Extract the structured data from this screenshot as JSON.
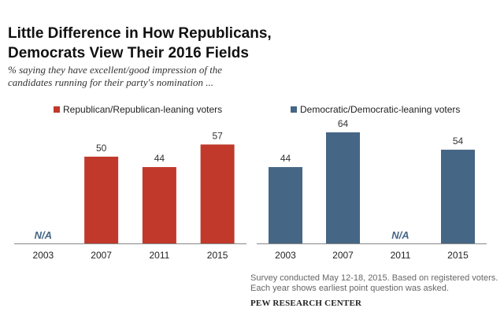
{
  "title_line1": "Little Difference in How Republicans,",
  "title_line2": "Democrats View Their 2016 Fields",
  "subtitle_line1": "% saying they have excellent/good impression of the",
  "subtitle_line2": "candidates running for their party's nomination ...",
  "note_line1": "Survey conducted May 12-18, 2015. Based on registered voters.",
  "note_line2": "Each year shows earliest point question was asked.",
  "source": "PEW RESEARCH CENTER",
  "colors": {
    "republican": "#c0392b",
    "democratic": "#466685",
    "na_text": "#466685"
  },
  "chart_data": [
    {
      "type": "bar",
      "categories": [
        "2003",
        "2007",
        "2011",
        "2015"
      ],
      "series": [
        {
          "name": "Republican/Republican-leaning voters",
          "values": [
            null,
            50,
            44,
            57
          ]
        }
      ],
      "value_labels": [
        "N/A",
        "50",
        "44",
        "57"
      ],
      "ylim": [
        0,
        64
      ]
    },
    {
      "type": "bar",
      "categories": [
        "2003",
        "2007",
        "2011",
        "2015"
      ],
      "series": [
        {
          "name": "Democratic/Democratic-leaning voters",
          "values": [
            44,
            64,
            null,
            54
          ]
        }
      ],
      "value_labels": [
        "44",
        "64",
        "N/A",
        "54"
      ],
      "ylim": [
        0,
        64
      ]
    }
  ]
}
